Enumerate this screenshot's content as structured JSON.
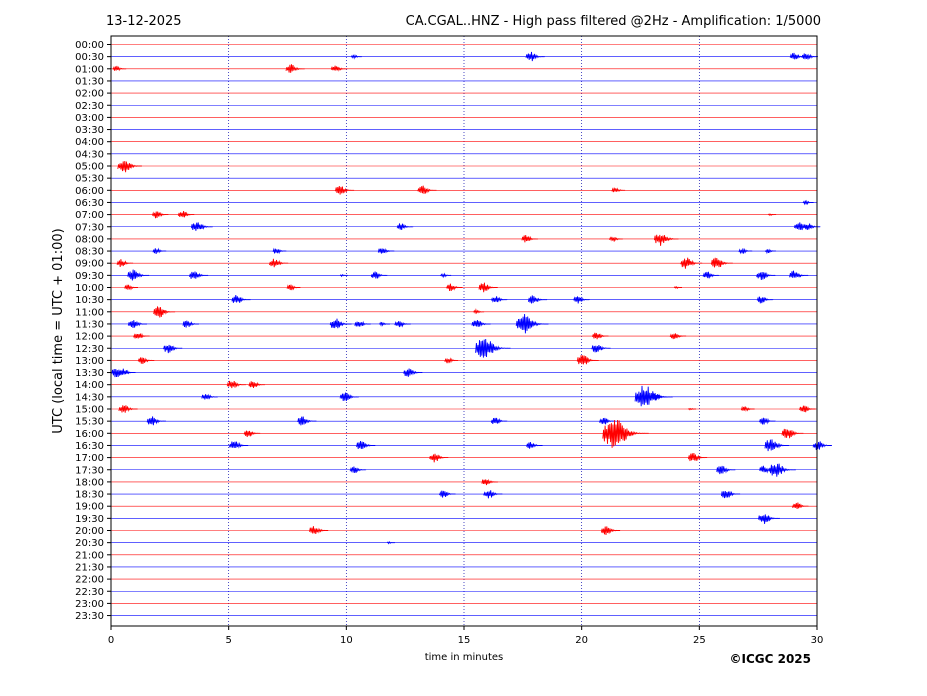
{
  "header": {
    "date": "13-12-2025",
    "title": "CA.CGAL..HNZ - High pass filtered @2Hz - Amplification: 1/5000"
  },
  "footer": {
    "copyright": "©ICGC 2025"
  },
  "colors": {
    "trace_a": "#ff0000",
    "trace_b": "#0000ff",
    "grid": "#0000aa",
    "axis": "#000000"
  },
  "chart_data": {
    "type": "line",
    "title": "CA.CGAL..HNZ - High pass filtered @2Hz - Amplification: 1/5000",
    "xlabel": "time in minutes",
    "ylabel": "UTC (local time = UTC + 01:00)",
    "xlim": [
      0,
      30
    ],
    "xticks": [
      0,
      5,
      10,
      15,
      20,
      25,
      30
    ],
    "ylabels": [
      "00:00",
      "00:30",
      "01:00",
      "01:30",
      "02:00",
      "02:30",
      "03:00",
      "03:30",
      "04:00",
      "04:30",
      "05:00",
      "05:30",
      "06:00",
      "06:30",
      "07:00",
      "07:30",
      "08:00",
      "08:30",
      "09:00",
      "09:30",
      "10:00",
      "10:30",
      "11:00",
      "11:30",
      "12:00",
      "12:30",
      "13:00",
      "13:30",
      "14:00",
      "14:30",
      "15:00",
      "15:30",
      "16:00",
      "16:30",
      "17:00",
      "17:30",
      "18:00",
      "18:30",
      "19:00",
      "19:30",
      "20:00",
      "20:30",
      "21:00",
      "21:30",
      "22:00",
      "22:30",
      "23:00",
      "23:30"
    ],
    "grid": "vertical dotted at 5-minute intervals",
    "events": [
      {
        "row": 1,
        "t": 10.3,
        "amp": 2
      },
      {
        "row": 1,
        "t": 17.8,
        "amp": 5
      },
      {
        "row": 1,
        "t": 29.0,
        "amp": 4
      },
      {
        "row": 1,
        "t": 29.5,
        "amp": 4
      },
      {
        "row": 2,
        "t": 0.2,
        "amp": 3
      },
      {
        "row": 2,
        "t": 7.6,
        "amp": 5
      },
      {
        "row": 2,
        "t": 9.5,
        "amp": 4
      },
      {
        "row": 10,
        "t": 0.5,
        "amp": 7
      },
      {
        "row": 12,
        "t": 9.7,
        "amp": 5
      },
      {
        "row": 12,
        "t": 13.2,
        "amp": 5
      },
      {
        "row": 12,
        "t": 21.4,
        "amp": 3
      },
      {
        "row": 13,
        "t": 29.5,
        "amp": 2
      },
      {
        "row": 14,
        "t": 1.9,
        "amp": 4
      },
      {
        "row": 14,
        "t": 3.0,
        "amp": 4
      },
      {
        "row": 14,
        "t": 28.0,
        "amp": 1
      },
      {
        "row": 15,
        "t": 3.6,
        "amp": 6
      },
      {
        "row": 15,
        "t": 12.3,
        "amp": 4
      },
      {
        "row": 15,
        "t": 29.2,
        "amp": 5
      },
      {
        "row": 15,
        "t": 29.6,
        "amp": 4
      },
      {
        "row": 16,
        "t": 17.6,
        "amp": 4
      },
      {
        "row": 16,
        "t": 21.3,
        "amp": 3
      },
      {
        "row": 16,
        "t": 23.3,
        "amp": 7
      },
      {
        "row": 17,
        "t": 1.9,
        "amp": 3
      },
      {
        "row": 17,
        "t": 7.0,
        "amp": 3
      },
      {
        "row": 17,
        "t": 11.5,
        "amp": 4
      },
      {
        "row": 17,
        "t": 26.8,
        "amp": 3
      },
      {
        "row": 17,
        "t": 27.9,
        "amp": 2
      },
      {
        "row": 18,
        "t": 0.4,
        "amp": 4
      },
      {
        "row": 18,
        "t": 6.9,
        "amp": 5
      },
      {
        "row": 18,
        "t": 24.4,
        "amp": 6
      },
      {
        "row": 18,
        "t": 25.7,
        "amp": 6
      },
      {
        "row": 19,
        "t": 0.9,
        "amp": 6
      },
      {
        "row": 19,
        "t": 3.5,
        "amp": 5
      },
      {
        "row": 19,
        "t": 9.8,
        "amp": 1
      },
      {
        "row": 19,
        "t": 11.2,
        "amp": 4
      },
      {
        "row": 19,
        "t": 14.1,
        "amp": 2
      },
      {
        "row": 19,
        "t": 25.3,
        "amp": 4
      },
      {
        "row": 19,
        "t": 27.6,
        "amp": 5
      },
      {
        "row": 19,
        "t": 29.0,
        "amp": 5
      },
      {
        "row": 20,
        "t": 0.7,
        "amp": 3
      },
      {
        "row": 20,
        "t": 7.6,
        "amp": 3
      },
      {
        "row": 20,
        "t": 14.4,
        "amp": 4
      },
      {
        "row": 20,
        "t": 15.8,
        "amp": 5
      },
      {
        "row": 20,
        "t": 24.0,
        "amp": 1
      },
      {
        "row": 21,
        "t": 5.3,
        "amp": 5
      },
      {
        "row": 21,
        "t": 16.3,
        "amp": 4
      },
      {
        "row": 21,
        "t": 17.9,
        "amp": 5
      },
      {
        "row": 21,
        "t": 19.8,
        "amp": 4
      },
      {
        "row": 21,
        "t": 27.6,
        "amp": 4
      },
      {
        "row": 22,
        "t": 2.0,
        "amp": 6
      },
      {
        "row": 22,
        "t": 15.5,
        "amp": 2
      },
      {
        "row": 23,
        "t": 0.9,
        "amp": 5
      },
      {
        "row": 23,
        "t": 3.2,
        "amp": 4
      },
      {
        "row": 23,
        "t": 9.5,
        "amp": 6
      },
      {
        "row": 23,
        "t": 10.5,
        "amp": 4
      },
      {
        "row": 23,
        "t": 11.5,
        "amp": 2
      },
      {
        "row": 23,
        "t": 12.2,
        "amp": 4
      },
      {
        "row": 23,
        "t": 15.5,
        "amp": 5
      },
      {
        "row": 23,
        "t": 17.5,
        "amp": 10
      },
      {
        "row": 24,
        "t": 1.1,
        "amp": 4
      },
      {
        "row": 24,
        "t": 20.6,
        "amp": 4
      },
      {
        "row": 24,
        "t": 23.9,
        "amp": 4
      },
      {
        "row": 25,
        "t": 2.4,
        "amp": 5
      },
      {
        "row": 25,
        "t": 15.8,
        "amp": 11
      },
      {
        "row": 25,
        "t": 20.6,
        "amp": 5
      },
      {
        "row": 26,
        "t": 1.3,
        "amp": 4
      },
      {
        "row": 26,
        "t": 14.3,
        "amp": 3
      },
      {
        "row": 26,
        "t": 20.0,
        "amp": 6
      },
      {
        "row": 27,
        "t": 0.2,
        "amp": 5
      },
      {
        "row": 27,
        "t": 0.5,
        "amp": 4
      },
      {
        "row": 27,
        "t": 12.6,
        "amp": 5
      },
      {
        "row": 28,
        "t": 5.1,
        "amp": 5
      },
      {
        "row": 28,
        "t": 6.0,
        "amp": 4
      },
      {
        "row": 29,
        "t": 4.0,
        "amp": 4
      },
      {
        "row": 29,
        "t": 9.9,
        "amp": 5
      },
      {
        "row": 29,
        "t": 22.6,
        "amp": 12
      },
      {
        "row": 29,
        "t": 23.1,
        "amp": 4
      },
      {
        "row": 30,
        "t": 0.5,
        "amp": 5
      },
      {
        "row": 30,
        "t": 24.6,
        "amp": 1
      },
      {
        "row": 30,
        "t": 26.9,
        "amp": 3
      },
      {
        "row": 30,
        "t": 29.4,
        "amp": 4
      },
      {
        "row": 31,
        "t": 1.7,
        "amp": 5
      },
      {
        "row": 31,
        "t": 8.1,
        "amp": 5
      },
      {
        "row": 31,
        "t": 16.3,
        "amp": 4
      },
      {
        "row": 31,
        "t": 20.9,
        "amp": 4
      },
      {
        "row": 31,
        "t": 27.7,
        "amp": 4
      },
      {
        "row": 32,
        "t": 5.8,
        "amp": 4
      },
      {
        "row": 32,
        "t": 21.3,
        "amp": 15
      },
      {
        "row": 32,
        "t": 28.7,
        "amp": 6
      },
      {
        "row": 33,
        "t": 5.2,
        "amp": 5
      },
      {
        "row": 33,
        "t": 10.6,
        "amp": 5
      },
      {
        "row": 33,
        "t": 17.8,
        "amp": 4
      },
      {
        "row": 33,
        "t": 28.0,
        "amp": 7
      },
      {
        "row": 33,
        "t": 30.0,
        "amp": 5
      },
      {
        "row": 34,
        "t": 13.7,
        "amp": 5
      },
      {
        "row": 34,
        "t": 24.7,
        "amp": 5
      },
      {
        "row": 35,
        "t": 10.3,
        "amp": 4
      },
      {
        "row": 35,
        "t": 25.9,
        "amp": 5
      },
      {
        "row": 35,
        "t": 27.7,
        "amp": 4
      },
      {
        "row": 35,
        "t": 28.2,
        "amp": 8
      },
      {
        "row": 36,
        "t": 15.9,
        "amp": 4
      },
      {
        "row": 37,
        "t": 14.1,
        "amp": 4
      },
      {
        "row": 37,
        "t": 16.0,
        "amp": 5
      },
      {
        "row": 37,
        "t": 26.1,
        "amp": 5
      },
      {
        "row": 38,
        "t": 29.1,
        "amp": 4
      },
      {
        "row": 39,
        "t": 27.7,
        "amp": 6
      },
      {
        "row": 40,
        "t": 8.6,
        "amp": 5
      },
      {
        "row": 40,
        "t": 21.0,
        "amp": 5
      },
      {
        "row": 41,
        "t": 11.8,
        "amp": 1
      }
    ]
  }
}
